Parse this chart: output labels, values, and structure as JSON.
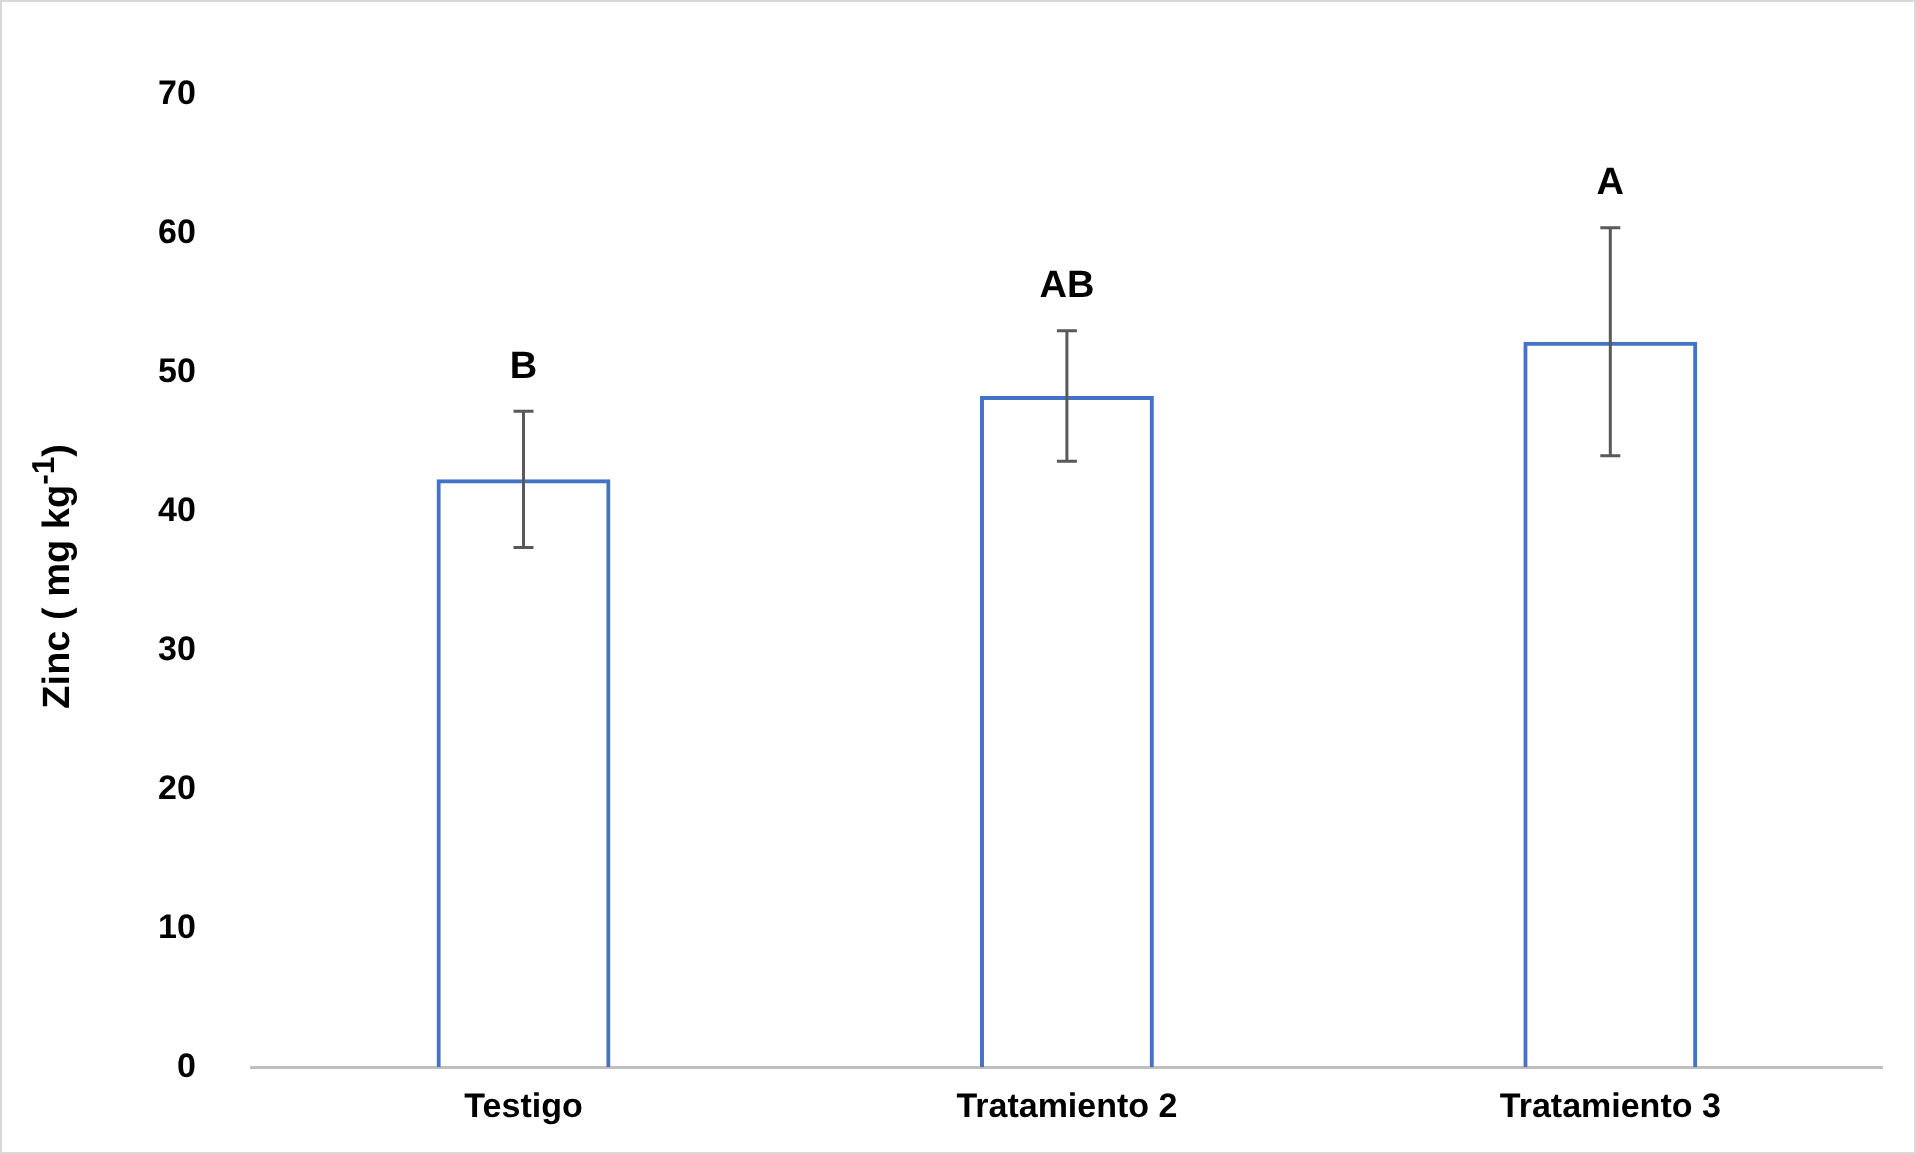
{
  "chart_data": {
    "type": "bar",
    "ylabel": "Zinc ( mg kg$^{-1}$)",
    "categories": [
      "Testigo",
      "Tratamiento 2",
      "Tratamiento 3"
    ],
    "values": [
      42.3,
      48.3,
      52.2
    ],
    "errors": [
      4.9,
      4.7,
      8.2
    ],
    "color": "#4472c4",
    "ylim": [
      0,
      70
    ],
    "yticks": [
      0,
      10,
      20,
      30,
      40,
      50,
      60,
      70
    ],
    "grid": false,
    "legend": false,
    "annotations": [
      "B",
      "AB",
      "A"
    ]
  }
}
